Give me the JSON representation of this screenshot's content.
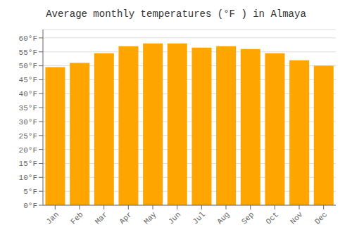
{
  "chart_data": {
    "type": "bar",
    "title": "Average monthly temperatures (°F ) in Almaya",
    "categories": [
      "Jan",
      "Feb",
      "Mar",
      "Apr",
      "May",
      "Jun",
      "Jul",
      "Aug",
      "Sep",
      "Oct",
      "Nov",
      "Dec"
    ],
    "values": [
      49.5,
      51.0,
      54.5,
      57.0,
      58.0,
      58.0,
      56.5,
      57.0,
      56.0,
      54.5,
      52.0,
      50.0
    ],
    "color": "#FFA500",
    "ylim": [
      0,
      63
    ],
    "yticks": [
      {
        "value": 0,
        "label": "0°F"
      },
      {
        "value": 5,
        "label": "5°F"
      },
      {
        "value": 10,
        "label": "10°F"
      },
      {
        "value": 15,
        "label": "15°F"
      },
      {
        "value": 20,
        "label": "20°F"
      },
      {
        "value": 25,
        "label": "25°F"
      },
      {
        "value": 30,
        "label": "30°F"
      },
      {
        "value": 35,
        "label": "35°F"
      },
      {
        "value": 40,
        "label": "40°F"
      },
      {
        "value": 45,
        "label": "45°F"
      },
      {
        "value": 50,
        "label": "50°F"
      },
      {
        "value": 55,
        "label": "55°F"
      },
      {
        "value": 60,
        "label": "60°F"
      }
    ],
    "grid": true
  }
}
